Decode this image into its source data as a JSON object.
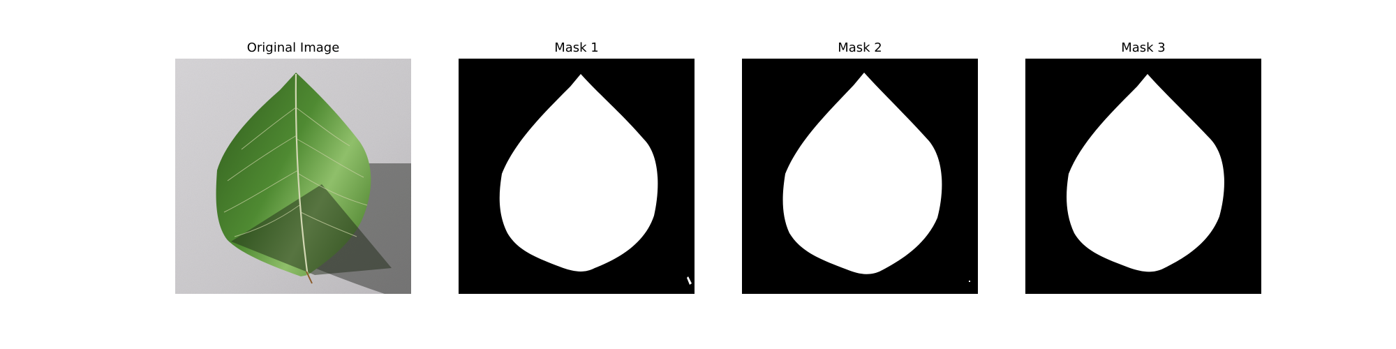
{
  "panels": [
    {
      "title": "Original Image",
      "kind": "photo"
    },
    {
      "title": "Mask 1",
      "kind": "mask"
    },
    {
      "title": "Mask 2",
      "kind": "mask"
    },
    {
      "title": "Mask 3",
      "kind": "mask"
    }
  ],
  "colors": {
    "background_paper": "#c9c7ca",
    "leaf_dark": "#2f5a1c",
    "leaf_mid": "#4f8a32",
    "leaf_light": "#8fbf6a",
    "vein": "#d3d8b4",
    "shadow": "#1f2a18",
    "mask_background": "#000000",
    "mask_foreground": "#ffffff"
  }
}
